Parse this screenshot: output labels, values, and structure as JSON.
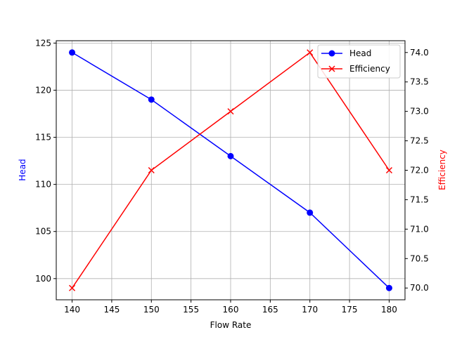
{
  "chart_data": {
    "type": "line",
    "title": "",
    "xlabel": "Flow Rate",
    "x": [
      140,
      150,
      160,
      170,
      180
    ],
    "xlim": [
      138,
      182
    ],
    "xticks": [
      "140",
      "145",
      "150",
      "155",
      "160",
      "165",
      "170",
      "175",
      "180"
    ],
    "grid": true,
    "legend_position": "top-right",
    "left_axis": {
      "label": "Head",
      "color": "#0000ff",
      "ylim": [
        97.75,
        125.25
      ],
      "ticks": [
        "100",
        "105",
        "110",
        "115",
        "120",
        "125"
      ]
    },
    "right_axis": {
      "label": "Efficiency",
      "color": "#ff0000",
      "ylim": [
        69.8,
        74.2
      ],
      "ticks": [
        "70.0",
        "70.5",
        "71.0",
        "71.5",
        "72.0",
        "72.5",
        "73.0",
        "73.5",
        "74.0"
      ]
    },
    "series": [
      {
        "name": "Head",
        "axis": "left",
        "color": "#0000ff",
        "marker": "circle",
        "values": [
          124,
          119,
          113,
          107,
          99
        ]
      },
      {
        "name": "Efficiency",
        "axis": "right",
        "color": "#ff0000",
        "marker": "x",
        "values": [
          70,
          72,
          73,
          74,
          72
        ]
      }
    ]
  }
}
